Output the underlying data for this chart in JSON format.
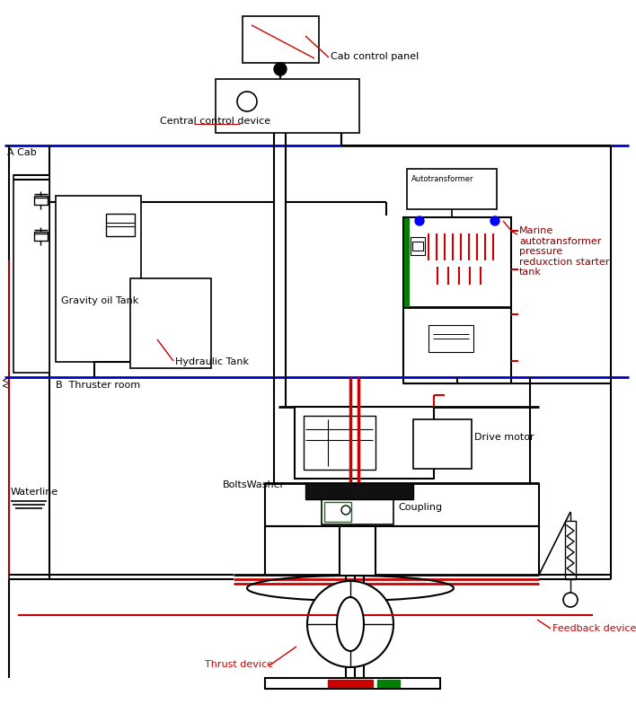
{
  "bg_color": "#ffffff",
  "line_color": "#000000",
  "blue_line_color": "#0000cc",
  "red_line_color": "#cc0000",
  "green_line_color": "#008000",
  "labels": {
    "cab_control": "Cab control panel",
    "central_control": "Central control device",
    "a_cab": "A Cab",
    "b_thruster": "B  Thruster room",
    "gravity_tank": "Gravity oil Tank",
    "hydraulic_tank": "Hydraulic Tank",
    "marine_auto": "Marine\nautotransformer\npressure\nreduxction starter\ntank",
    "autotransformer": "Autotransformer",
    "drive_motor": "Drive motor",
    "bolts_washer": "BoltsWasher",
    "coupling": "Coupling",
    "waterline": "Waterline",
    "feedback": "Feedback device",
    "thrust": "Thrust device"
  }
}
